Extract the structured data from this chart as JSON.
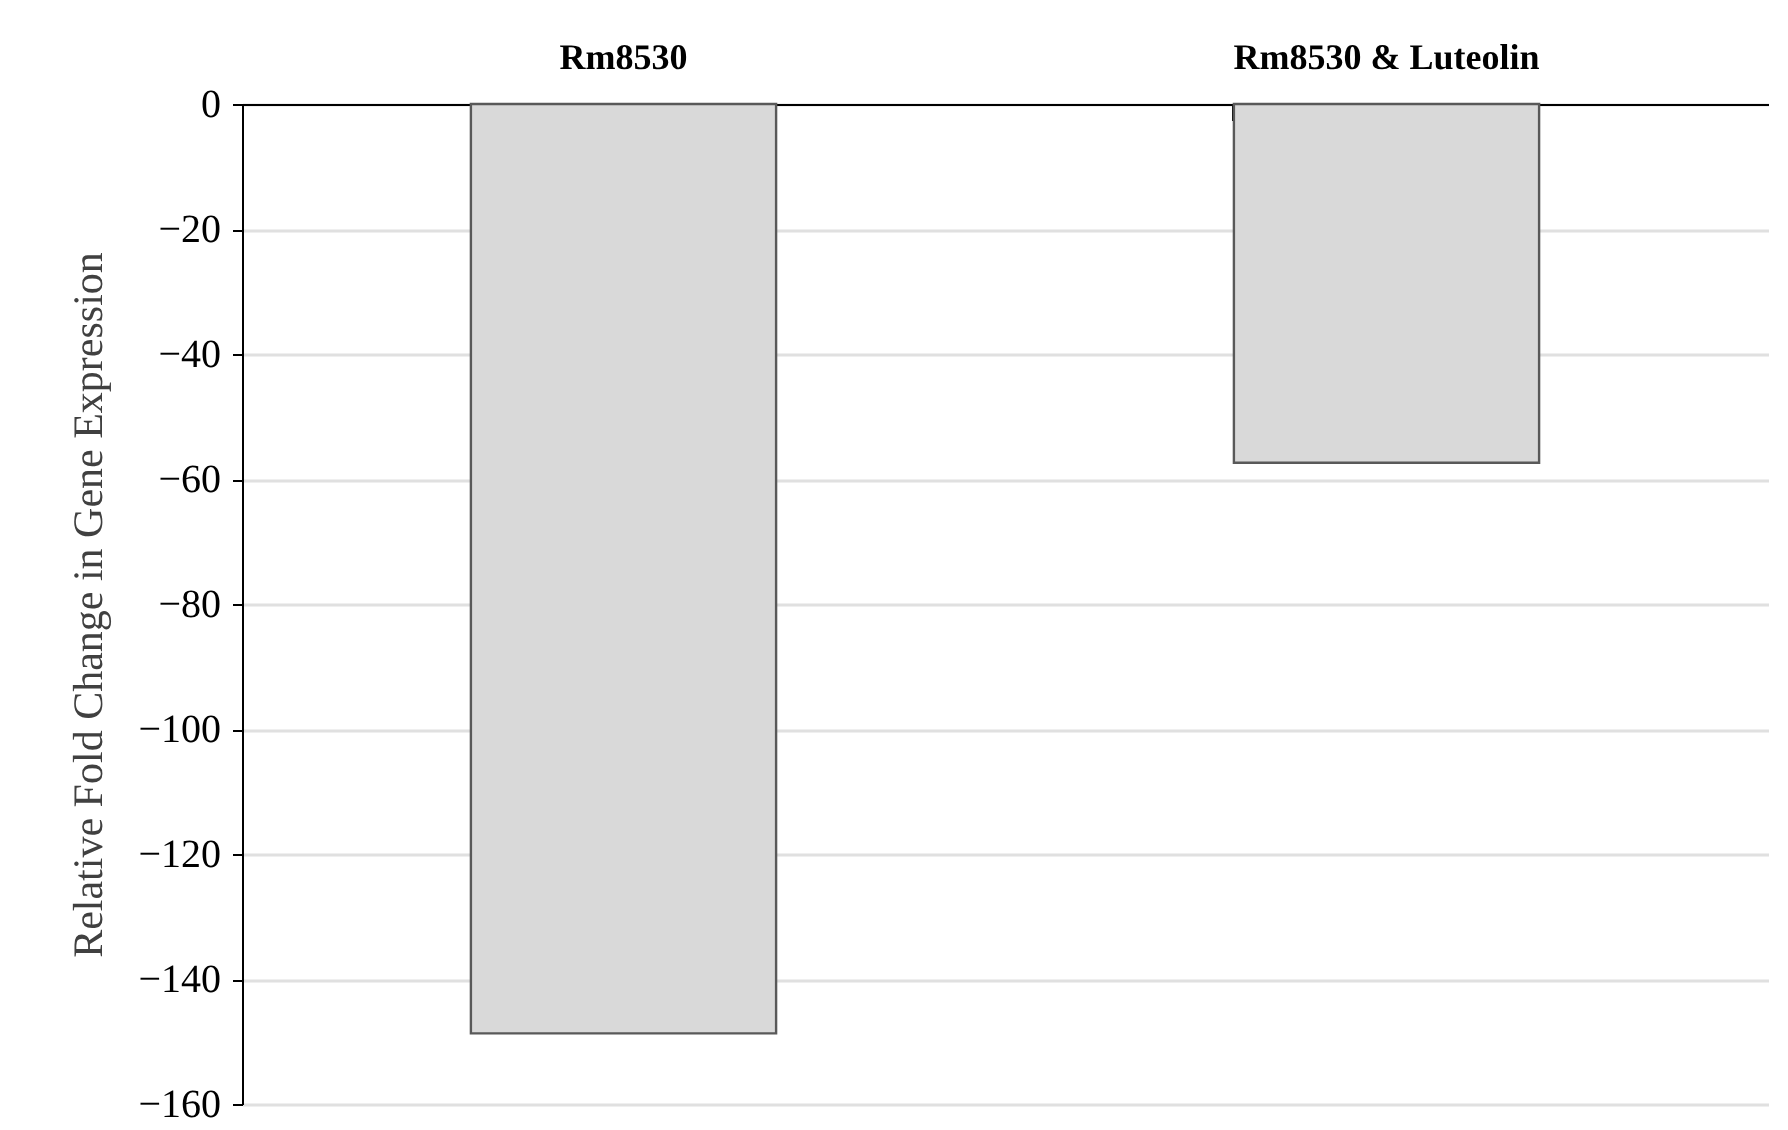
{
  "chart_data": {
    "type": "bar",
    "ylabel": "Relative Fold Change in Gene Expression",
    "categories": [
      "Rm8530",
      "Rm8530 & Luteolin"
    ],
    "values": [
      -148.7,
      -57.4
    ],
    "color": "#d9d9d9",
    "ylim": [
      -160,
      0
    ],
    "yticks": [
      -160,
      -140,
      -120,
      -100,
      -80,
      -60,
      -40,
      -20,
      0
    ],
    "grid": "y"
  }
}
